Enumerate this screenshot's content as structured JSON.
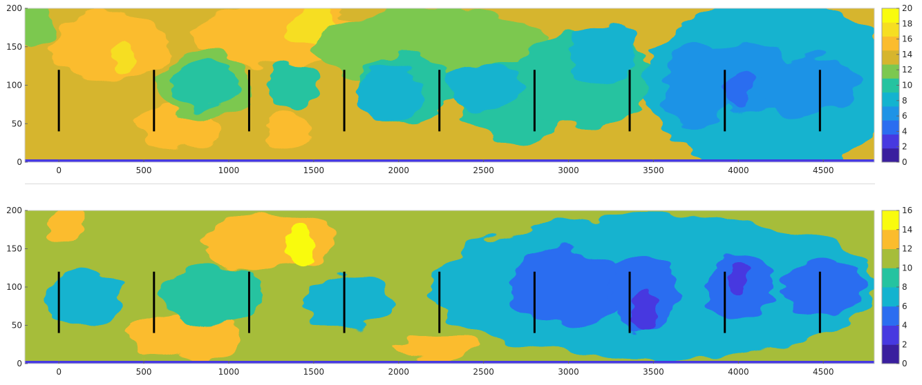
{
  "chart_data": [
    {
      "type": "heatmap",
      "title": "",
      "xlabel": "",
      "ylabel": "",
      "xlim": [
        -200,
        4800
      ],
      "ylim": [
        0,
        200
      ],
      "xticks": [
        0,
        500,
        1000,
        1500,
        2000,
        2500,
        3000,
        3500,
        4000,
        4500
      ],
      "yticks": [
        0,
        50,
        100,
        150,
        200
      ],
      "colorbar": {
        "ticks": [
          0,
          2,
          4,
          6,
          8,
          10,
          12,
          14,
          16,
          18,
          20
        ],
        "range": [
          0,
          20
        ],
        "colors": [
          "#3a1f9e",
          "#4739e0",
          "#2b6df0",
          "#1e93e6",
          "#13b3cf",
          "#25c3a0",
          "#7cc850",
          "#d6b52e",
          "#fbbc2d",
          "#f6de22",
          "#f9fb0e"
        ]
      },
      "background_level": 14,
      "bottom_level": 2,
      "markers": {
        "x": [
          0,
          560,
          1120,
          1680,
          2240,
          2800,
          3360,
          3920,
          4480
        ],
        "y_range": [
          40,
          120
        ]
      },
      "blobs": [
        {
          "x": -150,
          "y": 180,
          "rx": 120,
          "ry": 30,
          "level": 12
        },
        {
          "x": 300,
          "y": 150,
          "rx": 350,
          "ry": 45,
          "level": 16
        },
        {
          "x": 1300,
          "y": 165,
          "rx": 500,
          "ry": 40,
          "level": 16
        },
        {
          "x": 1500,
          "y": 175,
          "rx": 150,
          "ry": 25,
          "level": 18
        },
        {
          "x": 380,
          "y": 135,
          "rx": 70,
          "ry": 20,
          "level": 18
        },
        {
          "x": 700,
          "y": 45,
          "rx": 250,
          "ry": 30,
          "level": 16
        },
        {
          "x": 1350,
          "y": 40,
          "rx": 130,
          "ry": 25,
          "level": 16
        },
        {
          "x": 850,
          "y": 100,
          "rx": 270,
          "ry": 45,
          "level": 12
        },
        {
          "x": 850,
          "y": 100,
          "rx": 200,
          "ry": 32,
          "level": 10
        },
        {
          "x": 1380,
          "y": 100,
          "rx": 150,
          "ry": 30,
          "level": 10
        },
        {
          "x": 2200,
          "y": 150,
          "rx": 700,
          "ry": 50,
          "level": 12
        },
        {
          "x": 2050,
          "y": 95,
          "rx": 300,
          "ry": 45,
          "level": 10
        },
        {
          "x": 1950,
          "y": 90,
          "rx": 200,
          "ry": 35,
          "level": 8
        },
        {
          "x": 2700,
          "y": 80,
          "rx": 330,
          "ry": 55,
          "level": 10
        },
        {
          "x": 2500,
          "y": 100,
          "rx": 220,
          "ry": 30,
          "level": 8
        },
        {
          "x": 3100,
          "y": 110,
          "rx": 400,
          "ry": 60,
          "level": 10
        },
        {
          "x": 3200,
          "y": 140,
          "rx": 200,
          "ry": 40,
          "level": 8
        },
        {
          "x": 4200,
          "y": 100,
          "rx": 750,
          "ry": 110,
          "level": 8
        },
        {
          "x": 3750,
          "y": 100,
          "rx": 200,
          "ry": 55,
          "level": 6
        },
        {
          "x": 4050,
          "y": 110,
          "rx": 280,
          "ry": 45,
          "level": 6
        },
        {
          "x": 4400,
          "y": 100,
          "rx": 300,
          "ry": 40,
          "level": 6
        },
        {
          "x": 4000,
          "y": 95,
          "rx": 80,
          "ry": 25,
          "level": 4
        }
      ]
    },
    {
      "type": "heatmap",
      "title": "",
      "xlabel": "",
      "ylabel": "",
      "xlim": [
        -200,
        4800
      ],
      "ylim": [
        0,
        200
      ],
      "xticks": [
        0,
        500,
        1000,
        1500,
        2000,
        2500,
        3000,
        3500,
        4000,
        4500
      ],
      "yticks": [
        0,
        50,
        100,
        150,
        200
      ],
      "colorbar": {
        "ticks": [
          0,
          2,
          4,
          6,
          8,
          10,
          12,
          14,
          16
        ],
        "range": [
          0,
          16
        ],
        "colors": [
          "#3a1f9e",
          "#4739e0",
          "#2b6df0",
          "#13b3cf",
          "#25c3a0",
          "#a6bd3a",
          "#fbbc2d",
          "#f9fb0e"
        ]
      },
      "background_level": 10,
      "bottom_level": 2,
      "markers": {
        "x": [
          0,
          560,
          1120,
          1680,
          2240,
          2800,
          3360,
          3920,
          4480
        ],
        "y_range": [
          40,
          120
        ]
      },
      "blobs": [
        {
          "x": 50,
          "y": 180,
          "rx": 100,
          "ry": 20,
          "level": 12
        },
        {
          "x": 750,
          "y": 35,
          "rx": 350,
          "ry": 30,
          "level": 12
        },
        {
          "x": 1250,
          "y": 160,
          "rx": 400,
          "ry": 40,
          "level": 12
        },
        {
          "x": 1420,
          "y": 150,
          "rx": 80,
          "ry": 30,
          "level": 14
        },
        {
          "x": 2200,
          "y": 20,
          "rx": 250,
          "ry": 15,
          "level": 12
        },
        {
          "x": 150,
          "y": 85,
          "rx": 220,
          "ry": 40,
          "level": 6
        },
        {
          "x": 900,
          "y": 90,
          "rx": 300,
          "ry": 40,
          "level": 8
        },
        {
          "x": 1700,
          "y": 80,
          "rx": 250,
          "ry": 35,
          "level": 6
        },
        {
          "x": 3500,
          "y": 100,
          "rx": 1300,
          "ry": 95,
          "level": 6
        },
        {
          "x": 3000,
          "y": 100,
          "rx": 350,
          "ry": 50,
          "level": 4
        },
        {
          "x": 3450,
          "y": 95,
          "rx": 200,
          "ry": 50,
          "level": 4
        },
        {
          "x": 4000,
          "y": 100,
          "rx": 200,
          "ry": 45,
          "level": 4
        },
        {
          "x": 4500,
          "y": 100,
          "rx": 250,
          "ry": 35,
          "level": 4
        },
        {
          "x": 3450,
          "y": 70,
          "rx": 80,
          "ry": 25,
          "level": 2
        },
        {
          "x": 4000,
          "y": 110,
          "rx": 60,
          "ry": 20,
          "level": 2
        }
      ]
    }
  ]
}
